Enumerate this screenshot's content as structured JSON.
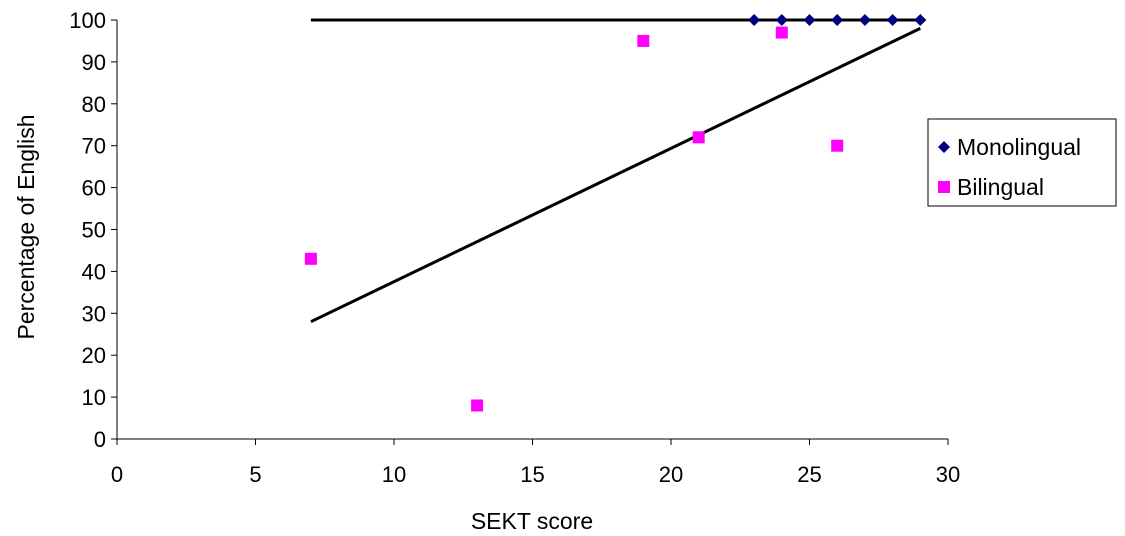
{
  "chart_data": {
    "type": "scatter",
    "title": "",
    "xlabel": "SEKT score",
    "ylabel": "Percentage of English",
    "xlim": [
      0,
      30
    ],
    "ylim": [
      0,
      100
    ],
    "x_ticks": [
      0,
      5,
      10,
      15,
      20,
      25,
      30
    ],
    "y_ticks": [
      0,
      10,
      20,
      30,
      40,
      50,
      60,
      70,
      80,
      90,
      100
    ],
    "grid": false,
    "legend_position": "right",
    "series": [
      {
        "name": "Monolingual",
        "marker": "diamond",
        "color": "#000080",
        "points": [
          [
            23,
            100
          ],
          [
            24,
            100
          ],
          [
            25,
            100
          ],
          [
            26,
            100
          ],
          [
            27,
            100
          ],
          [
            28,
            100
          ],
          [
            29,
            100
          ]
        ],
        "trendline": [
          [
            7,
            100
          ],
          [
            29,
            100
          ]
        ]
      },
      {
        "name": "Bilingual",
        "marker": "square",
        "color": "#FF00FF",
        "points": [
          [
            7,
            43
          ],
          [
            13,
            8
          ],
          [
            19,
            95
          ],
          [
            21,
            72
          ],
          [
            24,
            97
          ],
          [
            26,
            70
          ]
        ],
        "trendline": [
          [
            7,
            28
          ],
          [
            29,
            98
          ]
        ]
      }
    ]
  }
}
